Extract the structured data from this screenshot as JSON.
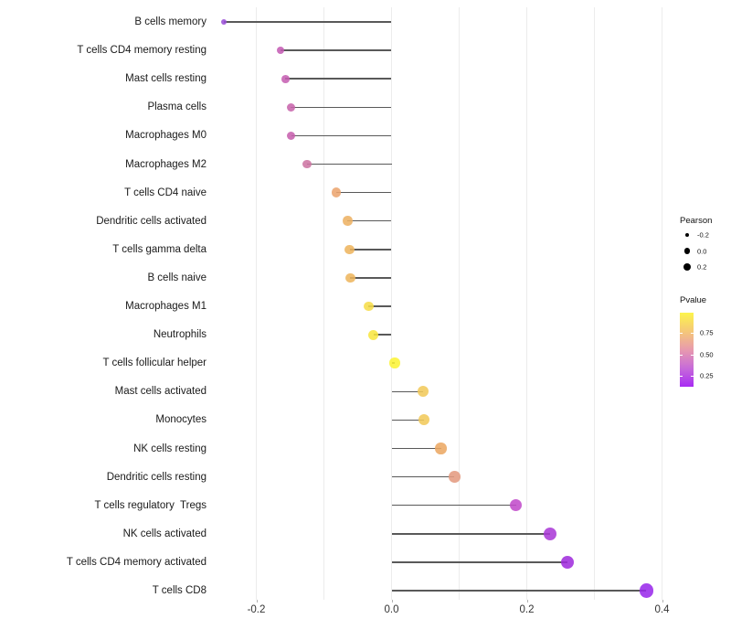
{
  "chart_data": {
    "type": "lollipop",
    "orientation": "horizontal",
    "title": "",
    "xlabel": "",
    "ylabel": "",
    "xlim": [
      -0.29,
      0.44
    ],
    "grid": "vertical-only",
    "gridline_values": [
      -0.2,
      -0.1,
      0.0,
      0.1,
      0.2,
      0.3,
      0.4
    ],
    "x_ticks": [
      {
        "value": -0.2,
        "label": "-0.2"
      },
      {
        "value": 0.0,
        "label": "0.0"
      },
      {
        "value": 0.2,
        "label": "0.2"
      },
      {
        "value": 0.4,
        "label": "0.4"
      }
    ],
    "points": [
      {
        "category": "B cells memory",
        "pearson": -0.248,
        "color": "#9a4fd8"
      },
      {
        "category": "T cells CD4 memory resting",
        "pearson": -0.164,
        "color": "#c45cb4"
      },
      {
        "category": "Mast cells resting",
        "pearson": -0.157,
        "color": "#c55fb2"
      },
      {
        "category": "Plasma cells",
        "pearson": -0.149,
        "color": "#c864ab"
      },
      {
        "category": "Macrophages M0",
        "pearson": -0.148,
        "color": "#c75fae"
      },
      {
        "category": "Macrophages M2",
        "pearson": -0.125,
        "color": "#cd74a2"
      },
      {
        "category": "T cells CD4 naive",
        "pearson": -0.082,
        "color": "#eca46e"
      },
      {
        "category": "Dendritic cells activated",
        "pearson": -0.065,
        "color": "#edb163"
      },
      {
        "category": "T cells gamma delta",
        "pearson": -0.062,
        "color": "#eeb45e"
      },
      {
        "category": "B cells naive",
        "pearson": -0.061,
        "color": "#eeb55d"
      },
      {
        "category": "Macrophages M1",
        "pearson": -0.034,
        "color": "#f6dc48"
      },
      {
        "category": "Neutrophils",
        "pearson": -0.027,
        "color": "#f8e63f"
      },
      {
        "category": "T cells follicular helper",
        "pearson": 0.005,
        "color": "#fcf336"
      },
      {
        "category": "Mast cells activated",
        "pearson": 0.047,
        "color": "#f1c95a"
      },
      {
        "category": "Monocytes",
        "pearson": 0.048,
        "color": "#f1c95a"
      },
      {
        "category": "NK cells resting",
        "pearson": 0.073,
        "color": "#eca863"
      },
      {
        "category": "Dendritic cells resting",
        "pearson": 0.093,
        "color": "#e49a80"
      },
      {
        "category": "T cells regulatory  Tregs",
        "pearson": 0.184,
        "color": "#c14bca"
      },
      {
        "category": "NK cells activated",
        "pearson": 0.234,
        "color": "#aa3ad7"
      },
      {
        "category": "T cells CD4 memory activated",
        "pearson": 0.26,
        "color": "#a02ddd"
      },
      {
        "category": "T cells CD8",
        "pearson": 0.377,
        "color": "#9929ea"
      }
    ]
  },
  "legend": {
    "size_legend": {
      "title": "Pearson",
      "entries": [
        {
          "label": "-0.2",
          "value": -0.2
        },
        {
          "label": "0.0",
          "value": 0.0
        },
        {
          "label": "0.2",
          "value": 0.2
        }
      ],
      "key_color": "#000000"
    },
    "color_legend": {
      "title": "Pvalue",
      "gradient_top_to_bottom": [
        "#fcf44c",
        "#f5c878",
        "#e89aae",
        "#c76bd9",
        "#a82bf3"
      ],
      "ticks": [
        {
          "label": "0.75",
          "frac_from_top": 0.27
        },
        {
          "label": "0.50",
          "frac_from_top": 0.57
        },
        {
          "label": "0.25",
          "frac_from_top": 0.85
        }
      ]
    }
  },
  "style_colors": {
    "stem": "#595959",
    "gridline": "#ececec",
    "axis_text": "#333333",
    "category_text": "#1a1a1a"
  }
}
